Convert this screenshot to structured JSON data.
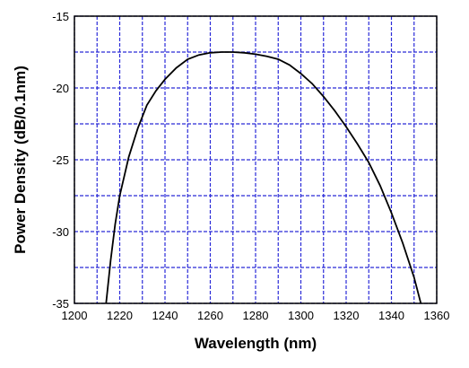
{
  "chart_data": {
    "type": "line",
    "x_label": "Wavelength (nm)",
    "y_label": "Power Density (dB/0.1nm)",
    "xlim": [
      1200,
      1360
    ],
    "ylim": [
      -35,
      -15
    ],
    "xticks": [
      1200,
      1220,
      1240,
      1260,
      1280,
      1300,
      1320,
      1340,
      1360
    ],
    "yticks": [
      -35,
      -30,
      -25,
      -20,
      -15
    ],
    "xminor_ticks": [
      1210,
      1230,
      1250,
      1270,
      1290,
      1310,
      1330,
      1350
    ],
    "yminor_ticks": [
      -32.5,
      -27.5,
      -22.5,
      -17.5
    ],
    "grid": true,
    "grid_color": "#2a2ad8",
    "series": [
      {
        "color": "#000000",
        "x": [
          1214,
          1216,
          1218,
          1220,
          1224,
          1228,
          1232,
          1236,
          1240,
          1245,
          1250,
          1255,
          1260,
          1265,
          1270,
          1275,
          1280,
          1285,
          1290,
          1295,
          1300,
          1305,
          1310,
          1315,
          1320,
          1325,
          1330,
          1335,
          1340,
          1345,
          1350,
          1353
        ],
        "values": [
          -35,
          -32,
          -29.5,
          -27.5,
          -24.8,
          -22.8,
          -21.2,
          -20.2,
          -19.4,
          -18.6,
          -18.0,
          -17.7,
          -17.55,
          -17.5,
          -17.5,
          -17.55,
          -17.65,
          -17.8,
          -18.0,
          -18.4,
          -19.0,
          -19.7,
          -20.6,
          -21.6,
          -22.7,
          -23.9,
          -25.2,
          -26.8,
          -28.7,
          -30.8,
          -33.2,
          -35
        ]
      }
    ]
  }
}
